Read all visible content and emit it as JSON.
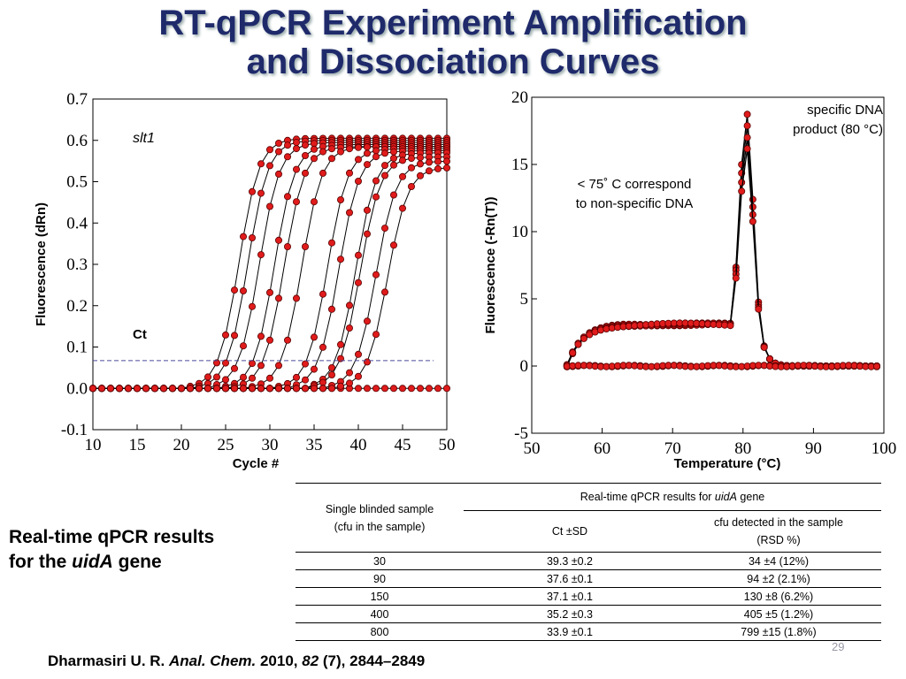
{
  "title": {
    "line1": "RT-qPCR Experiment Amplification",
    "line2": "and Dissociation Curves"
  },
  "chart_data": [
    {
      "type": "line",
      "ylabel": "Fluorescence (dRn)",
      "xlabel": "Cycle #",
      "xlim": [
        10,
        50
      ],
      "ylim": [
        -0.1,
        0.7
      ],
      "xticks": [
        "10",
        "15",
        "20",
        "25",
        "30",
        "35",
        "40",
        "45",
        "50"
      ],
      "yticks": [
        "-0.1",
        "0.0",
        "0.1",
        "0.2",
        "0.3",
        "0.4",
        "0.5",
        "0.6",
        "0.7"
      ],
      "annotation": "slt1",
      "threshold_label": "Ct",
      "threshold": 0.067,
      "series": [
        {
          "ct": 24.0,
          "midpoint": 26.5,
          "plateau": 0.605
        },
        {
          "ct": 25.0,
          "midpoint": 27.5,
          "plateau": 0.6
        },
        {
          "ct": 26.3,
          "midpoint": 28.8,
          "plateau": 0.595
        },
        {
          "ct": 28.0,
          "midpoint": 30.5,
          "plateau": 0.59
        },
        {
          "ct": 29.0,
          "midpoint": 31.6,
          "plateau": 0.585
        },
        {
          "ct": 31.0,
          "midpoint": 33.6,
          "plateau": 0.585
        },
        {
          "ct": 33.9,
          "midpoint": 36.5,
          "plateau": 0.58
        },
        {
          "ct": 35.2,
          "midpoint": 37.8,
          "plateau": 0.575
        },
        {
          "ct": 37.1,
          "midpoint": 39.7,
          "plateau": 0.57
        },
        {
          "ct": 37.6,
          "midpoint": 40.2,
          "plateau": 0.56
        },
        {
          "ct": 39.3,
          "midpoint": 42.0,
          "plateau": 0.55
        },
        {
          "ct": 40.5,
          "midpoint": 43.3,
          "plateau": 0.535
        }
      ]
    },
    {
      "type": "line",
      "ylabel": "Fluorescence (-Rn(T))",
      "xlabel": "Temperature (°C)",
      "xlim": [
        50,
        100
      ],
      "ylim": [
        -5,
        20
      ],
      "xticks": [
        "50",
        "60",
        "70",
        "80",
        "90",
        "100"
      ],
      "yticks": [
        "-5",
        "0",
        "5",
        "10",
        "15",
        "20"
      ],
      "annotation_1": "< 75˚ C  correspond",
      "annotation_1b": "to non-specific DNA",
      "annotation_2": "specific DNA",
      "annotation_2b": "product (80 °C)",
      "x_range": [
        55,
        99.5
      ],
      "peak_temperature": 80.5,
      "peak_value": 19,
      "plateau_value": 3.1
    }
  ],
  "table": {
    "col1_header_a": "Single blinded sample",
    "col1_header_b": "(cfu in the sample)",
    "group_header_prefix": "Real-time qPCR results for ",
    "group_header_gene": "uidA",
    "group_header_suffix": " gene",
    "col2_header": "Ct ±SD",
    "col3_header_a": "cfu detected in the sample",
    "col3_header_b": "(RSD %)",
    "rows": [
      {
        "sample": "30",
        "ct": "39.3 ±0.2",
        "cfu": "34 ±4 (12%)"
      },
      {
        "sample": "90",
        "ct": "37.6 ±0.1",
        "cfu": "94 ±2 (2.1%)"
      },
      {
        "sample": "150",
        "ct": "37.1 ±0.1",
        "cfu": "130 ±8 (6.2%)"
      },
      {
        "sample": "400",
        "ct": "35.2 ±0.3",
        "cfu": "405 ±5 (1.2%)"
      },
      {
        "sample": "800",
        "ct": "33.9 ±0.1",
        "cfu": "799 ±15 (1.8%)"
      }
    ]
  },
  "side_text": {
    "line1": "Real-time qPCR results",
    "line2_prefix": "for the ",
    "line2_gene": "uidA",
    "line2_suffix": " gene"
  },
  "citation": {
    "authors": "Dharmasiri U. R. ",
    "journal": "Anal. Chem.",
    "year": " 2010, ",
    "volume": "82",
    "rest": " (7), 2844–2849"
  },
  "page_number": "29",
  "colors": {
    "title": "#1f2a6b",
    "marker_fill": "#e01b1b",
    "marker_stroke": "#5a0000",
    "threshold_line": "#4a4a9a"
  }
}
